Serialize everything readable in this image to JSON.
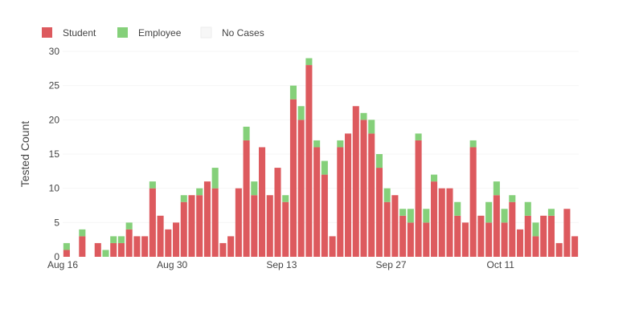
{
  "chart_data": {
    "type": "bar",
    "stacked": true,
    "ylabel": "Tested Count",
    "ylim": [
      0,
      30
    ],
    "yticks": [
      0,
      5,
      10,
      15,
      20,
      25,
      30
    ],
    "xticks": [
      {
        "label": "Aug 16",
        "date": "2020-08-16"
      },
      {
        "label": "Aug 30",
        "date": "2020-08-30"
      },
      {
        "label": "Sep 13",
        "date": "2020-09-13"
      },
      {
        "label": "Sep 27",
        "date": "2020-09-27"
      },
      {
        "label": "Oct 11",
        "date": "2020-10-11"
      }
    ],
    "x": [
      "2020-08-16",
      "2020-08-17",
      "2020-08-18",
      "2020-08-19",
      "2020-08-20",
      "2020-08-21",
      "2020-08-22",
      "2020-08-23",
      "2020-08-24",
      "2020-08-25",
      "2020-08-26",
      "2020-08-27",
      "2020-08-28",
      "2020-08-29",
      "2020-08-30",
      "2020-08-31",
      "2020-09-01",
      "2020-09-02",
      "2020-09-03",
      "2020-09-04",
      "2020-09-05",
      "2020-09-06",
      "2020-09-07",
      "2020-09-08",
      "2020-09-09",
      "2020-09-10",
      "2020-09-11",
      "2020-09-12",
      "2020-09-13",
      "2020-09-14",
      "2020-09-15",
      "2020-09-16",
      "2020-09-17",
      "2020-09-18",
      "2020-09-19",
      "2020-09-20",
      "2020-09-21",
      "2020-09-22",
      "2020-09-23",
      "2020-09-24",
      "2020-09-25",
      "2020-09-26",
      "2020-09-27",
      "2020-09-28",
      "2020-09-29",
      "2020-09-30",
      "2020-10-01",
      "2020-10-02",
      "2020-10-03",
      "2020-10-04",
      "2020-10-05",
      "2020-10-06",
      "2020-10-07",
      "2020-10-08",
      "2020-10-09",
      "2020-10-10",
      "2020-10-11",
      "2020-10-12",
      "2020-10-13",
      "2020-10-14",
      "2020-10-15",
      "2020-10-16",
      "2020-10-17",
      "2020-10-18",
      "2020-10-19",
      "2020-10-20"
    ],
    "series": [
      {
        "name": "Student",
        "color": "#dd5a5e",
        "values": [
          1,
          0,
          3,
          0,
          2,
          0,
          2,
          2,
          4,
          3,
          3,
          10,
          6,
          4,
          5,
          8,
          9,
          9,
          11,
          10,
          2,
          3,
          10,
          17,
          9,
          16,
          9,
          13,
          8,
          23,
          20,
          28,
          16,
          12,
          3,
          16,
          18,
          22,
          20,
          18,
          13,
          8,
          9,
          6,
          5,
          17,
          5,
          11,
          10,
          10,
          6,
          5,
          16,
          6,
          5,
          9,
          5,
          8,
          4,
          6,
          3,
          6,
          6,
          2,
          7,
          3
        ]
      },
      {
        "name": "Employee",
        "color": "#85d07a",
        "values": [
          1,
          0,
          1,
          0,
          0,
          1,
          1,
          1,
          1,
          0,
          0,
          1,
          0,
          0,
          0,
          1,
          0,
          1,
          0,
          3,
          0,
          0,
          0,
          2,
          2,
          0,
          0,
          0,
          1,
          2,
          2,
          1,
          1,
          2,
          0,
          1,
          0,
          0,
          1,
          2,
          2,
          2,
          0,
          1,
          2,
          1,
          2,
          1,
          0,
          0,
          2,
          0,
          1,
          0,
          3,
          2,
          2,
          1,
          0,
          2,
          2,
          0,
          1,
          0,
          0,
          0
        ]
      },
      {
        "name": "No Cases",
        "color": "#f7f7f7",
        "values": [
          0,
          0,
          0,
          0,
          0,
          0,
          0,
          0,
          0,
          0,
          0,
          0,
          0,
          0,
          0,
          0,
          0,
          0,
          0,
          0,
          0,
          0,
          0,
          0,
          0,
          0,
          0,
          0,
          0,
          0,
          0,
          0,
          0,
          0,
          0,
          0,
          0,
          0,
          0,
          0,
          0,
          0,
          0,
          0,
          0,
          0,
          0,
          0,
          0,
          0,
          0,
          0,
          0,
          0,
          0,
          0,
          0,
          0,
          0,
          0,
          0,
          0,
          0,
          0,
          0,
          0
        ]
      }
    ],
    "legend": {
      "position": "top-left",
      "orientation": "horizontal"
    },
    "grid": true
  }
}
